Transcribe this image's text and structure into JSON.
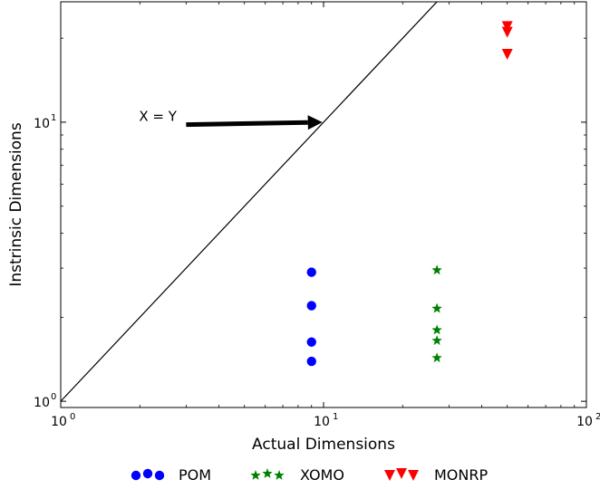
{
  "chart_data": {
    "type": "scatter",
    "title": "",
    "xlabel": "Actual Dimensions",
    "ylabel": "Instrinsic Dimensions",
    "xscale": "log",
    "yscale": "log",
    "xlim": [
      1,
      100
    ],
    "ylim": [
      0.95,
      27
    ],
    "grid": false,
    "legend_position": "bottom",
    "x_ticks": [
      {
        "value": 1,
        "base": "10",
        "exp": "0"
      },
      {
        "value": 10,
        "base": "10",
        "exp": "1"
      },
      {
        "value": 100,
        "base": "10",
        "exp": "2"
      }
    ],
    "y_ticks": [
      {
        "value": 1,
        "base": "10",
        "exp": "0"
      },
      {
        "value": 10,
        "base": "10",
        "exp": "1"
      }
    ],
    "reference_line": {
      "label": "X = Y",
      "points": [
        [
          1,
          1
        ],
        [
          100,
          100
        ]
      ]
    },
    "annotation": {
      "text": "X = Y",
      "xy": [
        9.9,
        10.0
      ],
      "xytext": [
        3.0,
        9.8
      ]
    },
    "series": [
      {
        "name": "POM",
        "marker": "circle",
        "color": "#0000ff",
        "points": [
          [
            9,
            2.9
          ],
          [
            9,
            2.2
          ],
          [
            9,
            1.63
          ],
          [
            9,
            1.39
          ]
        ]
      },
      {
        "name": "XOMO",
        "marker": "star",
        "color": "#008000",
        "points": [
          [
            27,
            2.95
          ],
          [
            27,
            2.15
          ],
          [
            27,
            1.8
          ],
          [
            27,
            1.65
          ],
          [
            27,
            1.43
          ]
        ]
      },
      {
        "name": "MONRP",
        "marker": "triangle-down",
        "color": "#ff0000",
        "points": [
          [
            50,
            22.0
          ],
          [
            50,
            21.0
          ],
          [
            50,
            17.5
          ]
        ]
      }
    ]
  }
}
